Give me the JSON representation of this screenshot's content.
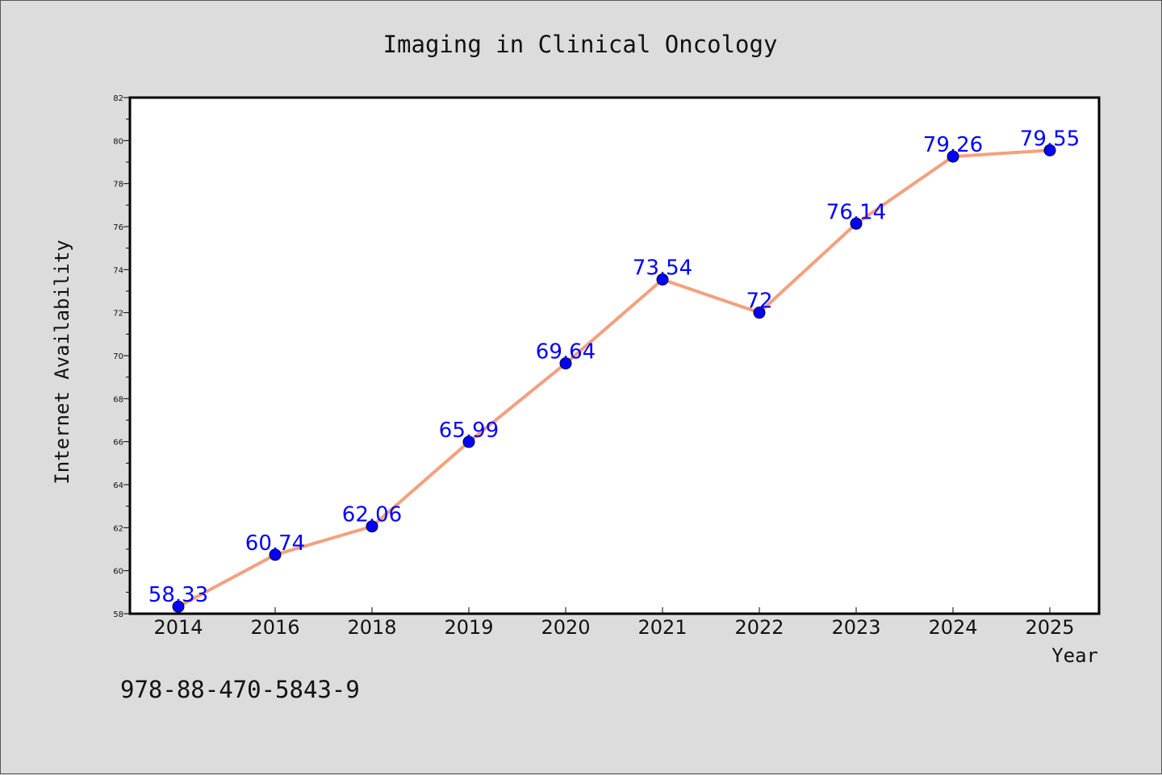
{
  "chart_data": {
    "type": "line",
    "title": "Imaging in Clinical Oncology",
    "xlabel": "Year",
    "ylabel": "Internet Availability",
    "categories": [
      "2014",
      "2016",
      "2018",
      "2019",
      "2020",
      "2021",
      "2022",
      "2023",
      "2024",
      "2025"
    ],
    "series": [
      {
        "values": [
          58.33,
          60.74,
          62.06,
          65.99,
          69.64,
          73.54,
          72,
          76.14,
          79.26,
          79.55
        ],
        "labels": [
          "58.33",
          "60.74",
          "62.06",
          "65.99",
          "69.64",
          "73.54",
          "72",
          "76.14",
          "79.26",
          "79.55"
        ]
      }
    ],
    "ylim": [
      58,
      82
    ],
    "yticks": [
      "58",
      "60",
      "62",
      "64",
      "66",
      "68",
      "70",
      "72",
      "74",
      "76",
      "78",
      "80",
      "82"
    ],
    "grid": false,
    "line_color": "#f4a07e",
    "marker_color": "#0000ff",
    "label_color": "#0000ff",
    "background_color": "#dcdcdc",
    "plot_background_color": "#ffffff"
  },
  "footer": {
    "isbn": "978-88-470-5843-9"
  }
}
